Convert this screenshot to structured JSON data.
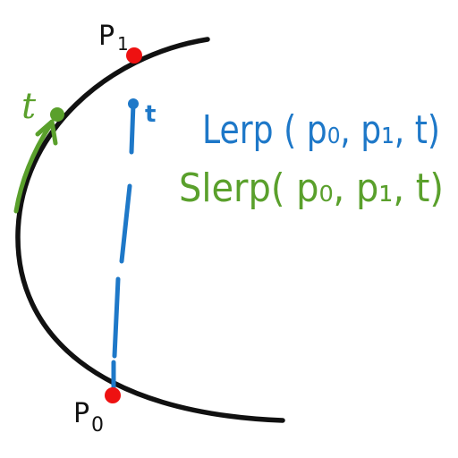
{
  "diagram": {
    "labels": {
      "p1": "P",
      "p1_sub": "1",
      "p0": "P",
      "p0_sub": "0",
      "t_arc": "t",
      "t_line": "t"
    },
    "formulas": {
      "lerp": "Lerp ( p₀, p₁, t)",
      "slerp": "Slerp( p₀, p₁, t)"
    },
    "colors": {
      "arc": "#111111",
      "point": "#ee1111",
      "lerp": "#1e78c8",
      "slerp": "#5aa02c",
      "background": "#ffffff"
    }
  }
}
